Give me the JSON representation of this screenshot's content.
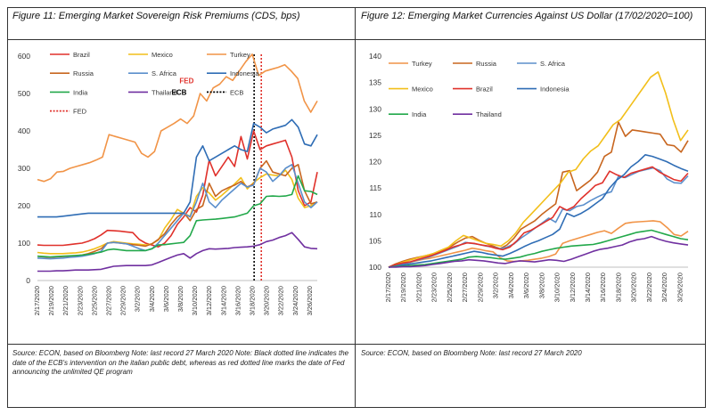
{
  "figures": [
    {
      "title": "Figure 11: Emerging Market Sovereign Risk Premiums (CDS, bps)",
      "source": "Source: ECON, based on Bloomberg Note: last record 27 March 2020 Note: Black dotted line indicates the date of the ECB's intervention on the italian public debt, whereas as red dotted line marks the date of Fed announcing the unlimited QE program"
    },
    {
      "title": "Figure 12: Emerging Market Currencies Against US Dollar (17/02/2020=100)",
      "source": "Source: ECON, based on Bloomberg Note: last record 27 March 2020"
    }
  ],
  "chart_data": [
    {
      "type": "line",
      "title": "Figure 11: Emerging Market Sovereign Risk Premiums (CDS, bps)",
      "ylim": [
        0,
        600
      ],
      "yticks": [
        0,
        100,
        200,
        300,
        400,
        500,
        600
      ],
      "grid": false,
      "legend": "top-left",
      "x_tick_labels": [
        "2/17/2020",
        "2/19/2020",
        "2/21/2020",
        "2/23/2020",
        "2/25/2020",
        "2/27/2020",
        "2/29/2020",
        "3/2/2020",
        "3/4/2020",
        "3/6/2020",
        "3/8/2020",
        "3/10/2020",
        "3/12/2020",
        "3/14/2020",
        "3/16/2020",
        "3/18/2020",
        "3/20/2020",
        "3/22/2020",
        "3/24/2020",
        "3/26/2020"
      ],
      "x_start": "2020-02-17",
      "x_end": "2020-03-27",
      "series": [
        {
          "name": "Brazil",
          "color": "#e0312b",
          "values": [
            95,
            94,
            94,
            94,
            94,
            96,
            98,
            100,
            105,
            112,
            122,
            134,
            133,
            132,
            130,
            128,
            110,
            100,
            95,
            90,
            100,
            120,
            150,
            170,
            195,
            183,
            228,
            322,
            280,
            305,
            330,
            305,
            385,
            325,
            400,
            350,
            360,
            365,
            370,
            375,
            330,
            240,
            200,
            210,
            290
          ]
        },
        {
          "name": "Mexico",
          "color": "#f2bf1a",
          "values": [
            75,
            73,
            72,
            72,
            72,
            73,
            74,
            76,
            80,
            85,
            92,
            100,
            104,
            102,
            100,
            98,
            97,
            95,
            98,
            108,
            140,
            163,
            190,
            180,
            172,
            225,
            248,
            234,
            215,
            228,
            243,
            258,
            275,
            245,
            262,
            275,
            285,
            282,
            280,
            295,
            270,
            220,
            195,
            200,
            210
          ]
        },
        {
          "name": "Turkey",
          "color": "#f19447",
          "values": [
            270,
            265,
            272,
            290,
            292,
            300,
            305,
            310,
            315,
            322,
            330,
            390,
            385,
            380,
            375,
            370,
            340,
            330,
            345,
            400,
            410,
            420,
            432,
            420,
            440,
            500,
            480,
            515,
            525,
            545,
            535,
            560,
            585,
            605,
            548,
            560,
            565,
            570,
            577,
            560,
            540,
            480,
            450,
            480
          ]
        },
        {
          "name": "Russia",
          "color": "#c8661f",
          "values": [
            65,
            63,
            62,
            63,
            64,
            65,
            66,
            68,
            72,
            78,
            85,
            100,
            102,
            100,
            98,
            96,
            94,
            92,
            98,
            110,
            125,
            150,
            170,
            182,
            160,
            190,
            200,
            260,
            225,
            240,
            248,
            255,
            265,
            250,
            258,
            300,
            320,
            290,
            285,
            280,
            300,
            310,
            240,
            205,
            210
          ]
        },
        {
          "name": "S. Africa",
          "color": "#5b8fcc",
          "values": [
            60,
            59,
            58,
            59,
            60,
            62,
            63,
            65,
            68,
            72,
            78,
            100,
            102,
            100,
            98,
            92,
            85,
            80,
            85,
            100,
            120,
            140,
            160,
            180,
            170,
            210,
            260,
            210,
            195,
            215,
            230,
            245,
            260,
            250,
            255,
            300,
            290,
            265,
            280,
            300,
            310,
            260,
            210,
            195,
            210
          ]
        },
        {
          "name": "Indonesia",
          "color": "#2f6db5",
          "values": [
            170,
            170,
            170,
            170,
            172,
            174,
            176,
            178,
            180,
            180,
            180,
            180,
            180,
            180,
            180,
            180,
            180,
            180,
            180,
            180,
            180,
            180,
            180,
            180,
            210,
            330,
            360,
            320,
            330,
            340,
            350,
            360,
            350,
            345,
            420,
            410,
            395,
            405,
            410,
            415,
            430,
            410,
            365,
            360,
            390
          ]
        },
        {
          "name": "India",
          "color": "#22a84a",
          "values": [
            65,
            64,
            63,
            64,
            65,
            66,
            67,
            68,
            70,
            73,
            76,
            82,
            84,
            82,
            80,
            80,
            80,
            80,
            85,
            95,
            96,
            98,
            100,
            102,
            120,
            160,
            162,
            163,
            164,
            166,
            168,
            170,
            175,
            180,
            200,
            205,
            225,
            226,
            225,
            226,
            230,
            280,
            240,
            238,
            230
          ]
        },
        {
          "name": "Thailand",
          "color": "#7030a0",
          "values": [
            25,
            25,
            25,
            26,
            26,
            27,
            28,
            28,
            28,
            29,
            30,
            34,
            38,
            39,
            40,
            40,
            40,
            40,
            42,
            48,
            55,
            62,
            68,
            72,
            60,
            72,
            80,
            85,
            84,
            85,
            86,
            88,
            89,
            90,
            92,
            96,
            104,
            108,
            115,
            120,
            128,
            110,
            90,
            86,
            85
          ]
        }
      ],
      "markers": [
        {
          "name": "ECB",
          "date": "2020-03-18",
          "color": "#000000"
        },
        {
          "name": "FED",
          "date": "2020-03-19",
          "color": "#e0312b"
        }
      ],
      "annotations": [
        "ECB",
        "FED"
      ]
    },
    {
      "type": "line",
      "title": "Figure 12: Emerging Market Currencies Against US Dollar (17/02/2020=100)",
      "ylim": [
        100,
        140
      ],
      "yticks": [
        100,
        105,
        110,
        115,
        120,
        125,
        130,
        135,
        140
      ],
      "grid": false,
      "legend": "top-left",
      "x_tick_labels": [
        "2/17/2020",
        "2/19/2020",
        "2/21/2020",
        "2/23/2020",
        "2/25/2020",
        "2/27/2020",
        "2/29/2020",
        "3/2/2020",
        "3/4/2020",
        "3/6/2020",
        "3/8/2020",
        "3/10/2020",
        "3/12/2020",
        "3/14/2020",
        "3/16/2020",
        "3/18/2020",
        "3/20/2020",
        "3/22/2020",
        "3/24/2020",
        "3/26/2020"
      ],
      "x_start": "2020-02-17",
      "x_end": "2020-03-27",
      "series": [
        {
          "name": "Turkey",
          "color": "#f19447",
          "values": [
            100,
            100.3,
            100.6,
            100.9,
            101.2,
            101.5,
            101.7,
            102.0,
            102.3,
            102.6,
            102.9,
            103.2,
            103.6,
            103.4,
            103.1,
            102.9,
            101.8,
            101.2,
            101.1,
            101.2,
            101.3,
            101.5,
            101.7,
            102.0,
            102.5,
            104.5,
            105.0,
            105.4,
            105.8,
            106.2,
            106.6,
            106.9,
            106.4,
            107.4,
            108.3,
            108.5,
            108.6,
            108.7,
            108.8,
            108.6,
            107.5,
            106.2,
            105.9,
            106.8
          ]
        },
        {
          "name": "Russia",
          "color": "#c8661f",
          "values": [
            100,
            100.6,
            101.1,
            101.5,
            101.8,
            102.1,
            102.4,
            102.8,
            103.2,
            104.0,
            104.8,
            105.5,
            105.8,
            105.1,
            104.5,
            104.0,
            103.5,
            104.2,
            105.5,
            107.2,
            108.0,
            108.8,
            110.0,
            111.0,
            112.0,
            118.0,
            118.3,
            114.5,
            115.5,
            116.5,
            118.0,
            121.0,
            121.8,
            127.5,
            124.8,
            126.0,
            125.8,
            125.6,
            125.4,
            125.2,
            123.2,
            123.0,
            121.8,
            124.0
          ]
        },
        {
          "name": "S. Africa",
          "color": "#5b8fcc",
          "values": [
            100,
            100.3,
            100.6,
            100.9,
            101.3,
            101.6,
            102.0,
            102.5,
            103.0,
            103.5,
            104.0,
            104.7,
            104.5,
            104.3,
            104.0,
            103.8,
            103.5,
            103.8,
            104.4,
            105.5,
            106.4,
            107.4,
            108.3,
            109.3,
            108.5,
            111.0,
            110.7,
            111.5,
            111.8,
            112.6,
            113.3,
            113.9,
            114.3,
            117.2,
            117.0,
            117.6,
            118.2,
            118.5,
            118.8,
            118.3,
            116.7,
            116.0,
            115.9,
            117.3
          ]
        },
        {
          "name": "Mexico",
          "color": "#f2bf1a",
          "values": [
            100,
            100.5,
            101.0,
            101.4,
            101.8,
            102.2,
            102.6,
            103.2,
            103.8,
            105.0,
            106.0,
            105.5,
            105.0,
            104.5,
            104.3,
            104.0,
            105.0,
            106.5,
            108.5,
            110.0,
            111.5,
            113.0,
            114.5,
            116.0,
            118.0,
            118.5,
            120.5,
            122.0,
            123.0,
            125.0,
            127.0,
            128.0,
            130.0,
            132.0,
            134.0,
            136.0,
            137.0,
            133.0,
            128.0,
            124.0,
            126.0
          ]
        },
        {
          "name": "Brazil",
          "color": "#e0312b",
          "values": [
            100,
            100.5,
            100.8,
            101.0,
            101.4,
            101.8,
            102.2,
            102.7,
            103.2,
            103.8,
            104.2,
            104.6,
            104.5,
            104.2,
            104.0,
            103.6,
            103.3,
            103.8,
            105.0,
            106.5,
            107.0,
            107.8,
            108.6,
            109.4,
            111.5,
            110.8,
            111.5,
            113.0,
            114.2,
            115.5,
            116.0,
            118.2,
            117.5,
            117.0,
            117.8,
            118.2,
            118.6,
            119.0,
            118.0,
            117.3,
            116.6,
            116.3,
            117.8
          ]
        },
        {
          "name": "Indonesia",
          "color": "#2f6db5",
          "values": [
            100,
            100.2,
            100.4,
            100.6,
            100.8,
            101.0,
            101.2,
            101.5,
            101.8,
            102.1,
            102.4,
            102.7,
            103.0,
            102.8,
            102.5,
            102.3,
            102.1,
            102.6,
            103.2,
            103.9,
            104.5,
            105.0,
            105.6,
            106.2,
            107.2,
            110.2,
            109.6,
            110.2,
            111.0,
            112.0,
            113.0,
            115.0,
            116.5,
            117.5,
            119.0,
            120.0,
            121.3,
            121.0,
            120.5,
            120.0,
            119.3,
            118.7,
            118.2
          ]
        },
        {
          "name": "India",
          "color": "#22a84a",
          "values": [
            100,
            100.1,
            100.2,
            100.3,
            100.4,
            100.5,
            100.7,
            100.9,
            101.1,
            101.3,
            101.5,
            101.9,
            102.0,
            101.9,
            101.8,
            101.6,
            101.5,
            101.7,
            101.9,
            102.3,
            102.6,
            103.0,
            103.3,
            103.6,
            103.8,
            104.0,
            104.1,
            104.2,
            104.3,
            104.6,
            105.0,
            105.4,
            105.8,
            106.2,
            106.6,
            106.8,
            107.0,
            106.6,
            106.2,
            105.8,
            105.4,
            105.2
          ]
        },
        {
          "name": "Thailand",
          "color": "#7030a0",
          "values": [
            100,
            100.0,
            100.1,
            100.1,
            100.2,
            100.3,
            100.5,
            100.7,
            100.9,
            101.1,
            101.2,
            101.4,
            101.3,
            101.2,
            101.0,
            100.8,
            100.7,
            101.0,
            101.2,
            101.1,
            101.0,
            101.2,
            101.4,
            101.3,
            101.1,
            101.5,
            102.0,
            102.5,
            103.0,
            103.4,
            103.6,
            103.9,
            104.2,
            104.8,
            105.2,
            105.4,
            105.8,
            105.3,
            104.9,
            104.6,
            104.4,
            104.2
          ]
        }
      ]
    }
  ]
}
